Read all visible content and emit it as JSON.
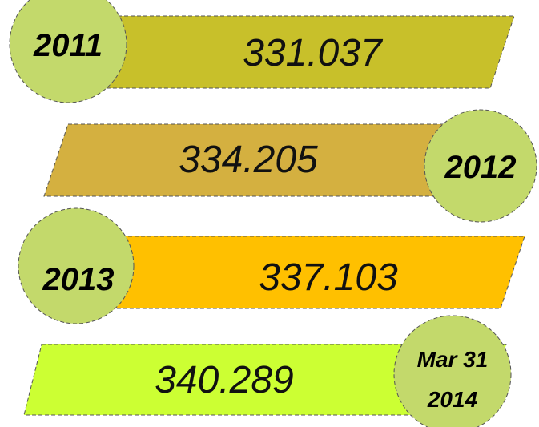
{
  "items": [
    {
      "label": "2011",
      "value": "331.037"
    },
    {
      "label": "2012",
      "value": "334.205"
    },
    {
      "label": "2013",
      "value": "337.103"
    },
    {
      "label": [
        "Mar 31",
        "2014"
      ],
      "value": "340.289"
    }
  ]
}
